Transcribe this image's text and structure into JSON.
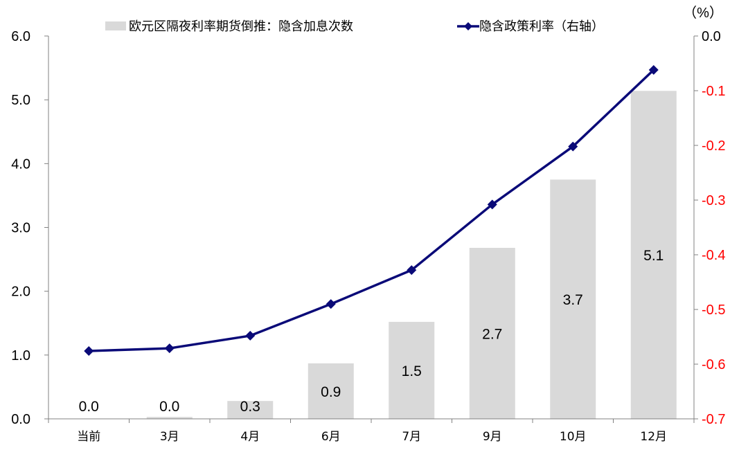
{
  "chart_data": {
    "type": "bar+line",
    "categories": [
      "当前",
      "3月",
      "4月",
      "6月",
      "7月",
      "9月",
      "10月",
      "12月"
    ],
    "series": [
      {
        "name": "欧元区隔夜利率期货倒推：隐含加息次数",
        "type": "bar",
        "axis": "left",
        "values": [
          0.0,
          0.03,
          0.28,
          0.87,
          1.52,
          2.68,
          3.75,
          5.14
        ],
        "labels": [
          "0.0",
          "0.0",
          "0.3",
          "0.9",
          "1.5",
          "2.7",
          "3.7",
          "5.1"
        ],
        "color": "#d9d9d9"
      },
      {
        "name": "隐含政策利率（右轴）",
        "type": "line",
        "axis": "right",
        "values": [
          -0.576,
          -0.571,
          -0.548,
          -0.49,
          -0.428,
          -0.308,
          -0.202,
          -0.062
        ],
        "color": "#0a0a78"
      }
    ],
    "y_left": {
      "min": 0,
      "max": 6,
      "ticks": [
        "0.0",
        "1.0",
        "2.0",
        "3.0",
        "4.0",
        "5.0",
        "6.0"
      ]
    },
    "y_right": {
      "min": -0.7,
      "max": 0,
      "unit": "（%）",
      "ticks": [
        "-0.7",
        "-0.6",
        "-0.5",
        "-0.4",
        "-0.3",
        "-0.2",
        "-0.1",
        "0.0"
      ],
      "negative_color": "#ff0000"
    },
    "legend_position": "top-center",
    "grid": false
  }
}
